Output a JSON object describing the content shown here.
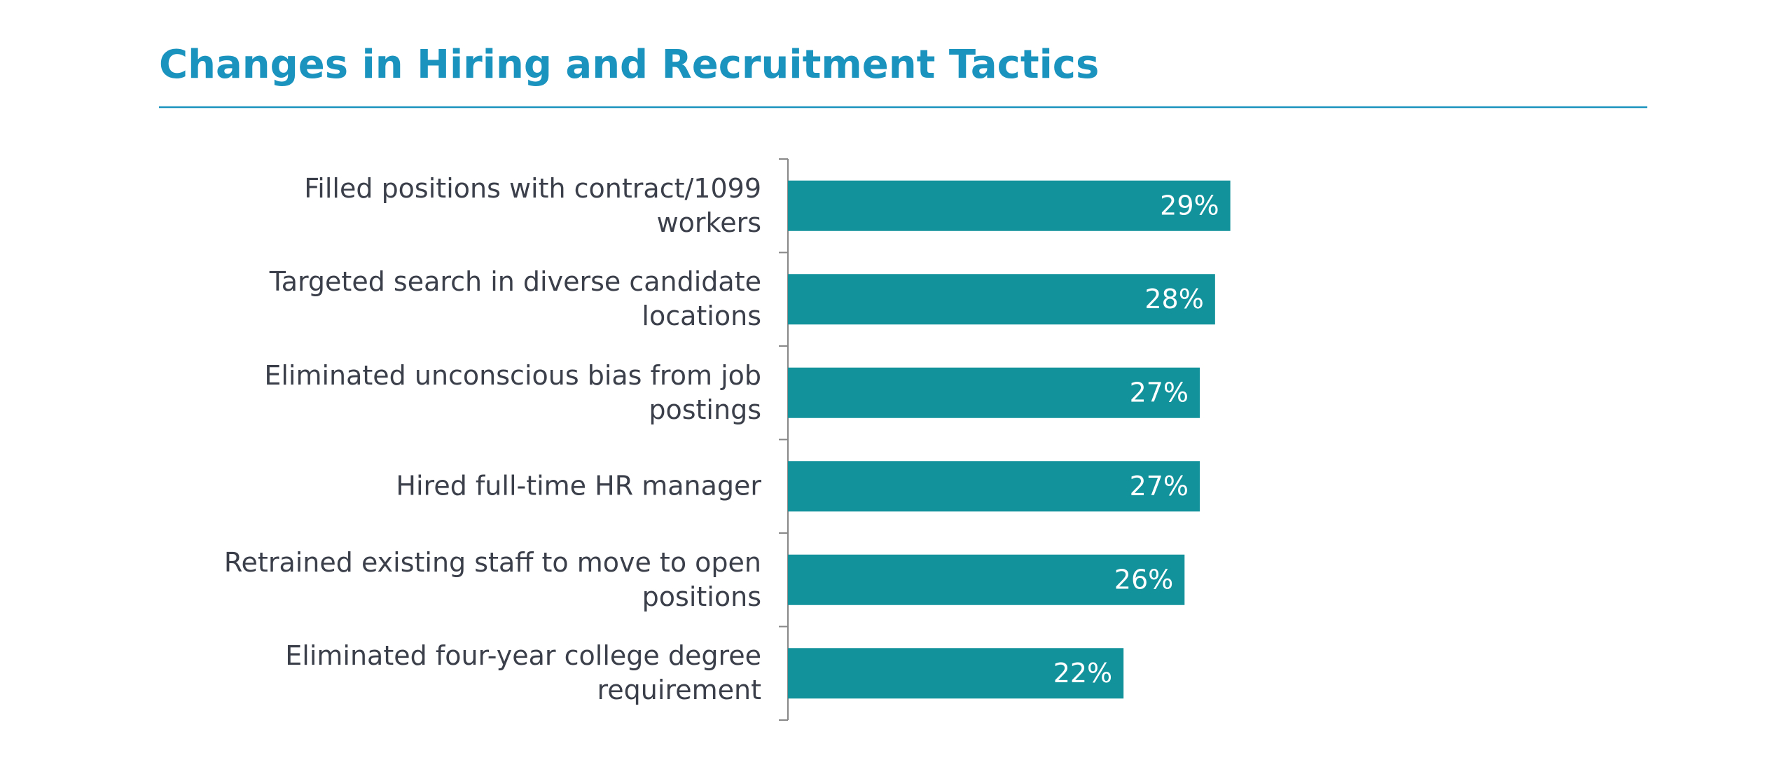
{
  "chart_data": {
    "type": "bar",
    "orientation": "horizontal",
    "title": "Changes in Hiring and Recruitment Tactics",
    "categories": [
      "Filled positions with contract/1099 workers",
      "Targeted search in diverse candidate locations",
      "Eliminated unconscious bias from job postings",
      "Hired full-time HR manager",
      "Retrained existing staff to move to open positions",
      "Eliminated four-year college degree requirement"
    ],
    "values": [
      29,
      28,
      27,
      27,
      26,
      22
    ],
    "value_labels": [
      "29%",
      "28%",
      "27%",
      "27%",
      "26%",
      "22%"
    ],
    "color": "#12929b",
    "xlim": [
      0,
      50
    ]
  }
}
